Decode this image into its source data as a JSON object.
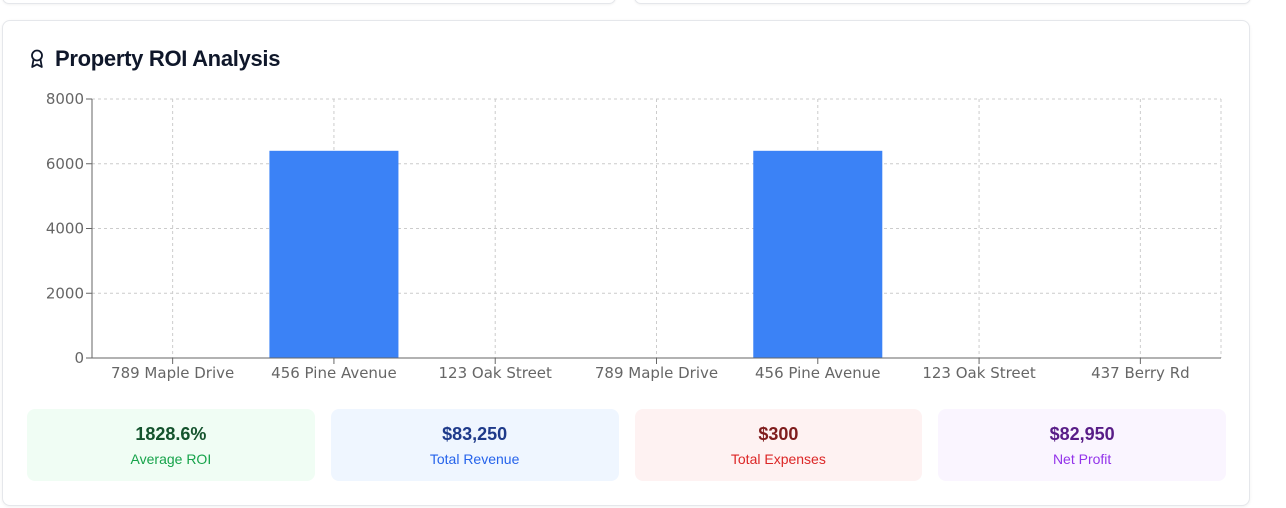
{
  "card": {
    "title": "Property ROI Analysis",
    "icon": "award-icon"
  },
  "chart_data": {
    "type": "bar",
    "categories": [
      "789 Maple Drive",
      "456 Pine Avenue",
      "123 Oak Street",
      "789 Maple Drive",
      "456 Pine Avenue",
      "123 Oak Street",
      "437 Berry Rd"
    ],
    "values": [
      0,
      6400,
      0,
      0,
      6400,
      0,
      0
    ],
    "ylim": [
      0,
      8000
    ],
    "yticks": [
      0,
      2000,
      4000,
      6000,
      8000
    ],
    "grid": true,
    "bar_color": "#3b82f6",
    "xlabel": "",
    "ylabel": ""
  },
  "stats": [
    {
      "value": "1828.6%",
      "label": "Average ROI",
      "color": "green"
    },
    {
      "value": "$83,250",
      "label": "Total Revenue",
      "color": "blue"
    },
    {
      "value": "$300",
      "label": "Total Expenses",
      "color": "red"
    },
    {
      "value": "$82,950",
      "label": "Net Profit",
      "color": "purple"
    }
  ]
}
